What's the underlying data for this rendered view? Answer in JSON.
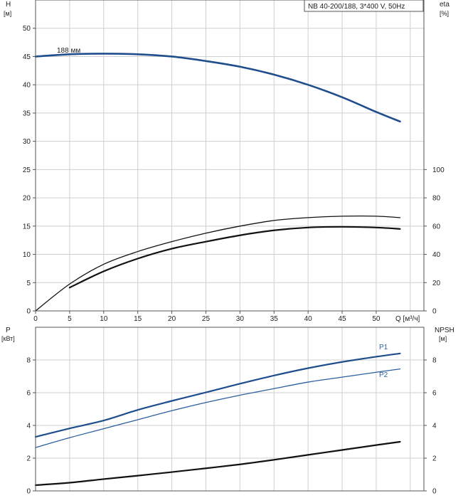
{
  "chart_data": [
    {
      "type": "line",
      "title": "NB 40-200/188, 3*400 V, 50Hz",
      "xlabel": "Q [м³/ч]",
      "ylabel": "H",
      "ylabel_unit": "[м]",
      "ylabel_right": "eta",
      "ylabel_right_unit": "[%]",
      "xlim": [
        0,
        57
      ],
      "ylim": [
        0,
        55
      ],
      "ylim_right": [
        0,
        220
      ],
      "x_ticks": [
        0,
        5,
        10,
        15,
        20,
        25,
        30,
        35,
        40,
        45,
        50
      ],
      "y_ticks": [
        0,
        5,
        10,
        15,
        20,
        25,
        30,
        35,
        40,
        45,
        50
      ],
      "y_ticks_right": [
        0,
        20,
        40,
        60,
        80,
        100
      ],
      "grid": true,
      "series": [
        {
          "name": "188 мм",
          "axis": "left",
          "color": "#1f4e8c",
          "x": [
            0,
            5,
            10,
            15,
            20,
            25,
            30,
            35,
            40,
            45,
            50,
            53.5
          ],
          "y": [
            45,
            45.4,
            45.5,
            45.4,
            45.0,
            44.2,
            43.2,
            41.8,
            40.0,
            37.8,
            35.2,
            33.5
          ]
        },
        {
          "name": "",
          "axis": "right",
          "color": "#111111",
          "x": [
            0,
            5,
            10,
            15,
            20,
            25,
            30,
            35,
            40,
            45,
            50,
            53.5
          ],
          "y": [
            0,
            19,
            33,
            42,
            49,
            55,
            60,
            64,
            66,
            67,
            67,
            66
          ]
        },
        {
          "name": "",
          "axis": "right",
          "color": "#111111",
          "x": [
            5,
            10,
            15,
            20,
            25,
            30,
            35,
            40,
            45,
            50,
            53.5
          ],
          "y": [
            16.5,
            28,
            37,
            44,
            49,
            53.5,
            57,
            59,
            59.5,
            59,
            58
          ]
        }
      ]
    },
    {
      "type": "line",
      "title": "",
      "xlabel": "",
      "ylabel": "P",
      "ylabel_unit": "[кВт]",
      "ylabel_right": "NPSH",
      "ylabel_right_unit": "[м]",
      "xlim": [
        0,
        57
      ],
      "ylim": [
        0,
        10
      ],
      "ylim_right": [
        0,
        10
      ],
      "y_ticks": [
        0,
        2,
        4,
        6,
        8
      ],
      "y_ticks_right": [
        0,
        2,
        4,
        6,
        8
      ],
      "grid": true,
      "series": [
        {
          "name": "P1",
          "axis": "left",
          "color": "#1f4e8c",
          "x": [
            0,
            5,
            10,
            15,
            20,
            25,
            30,
            35,
            40,
            45,
            50,
            53.5
          ],
          "y": [
            3.3,
            3.82,
            4.3,
            4.95,
            5.5,
            6.02,
            6.55,
            7.05,
            7.5,
            7.88,
            8.2,
            8.4
          ]
        },
        {
          "name": "P2",
          "axis": "left",
          "color": "#2b5f9e",
          "x": [
            0,
            5,
            10,
            15,
            20,
            25,
            30,
            35,
            40,
            45,
            50,
            53.5
          ],
          "y": [
            2.65,
            3.25,
            3.8,
            4.35,
            4.9,
            5.4,
            5.85,
            6.25,
            6.65,
            6.95,
            7.25,
            7.45
          ]
        },
        {
          "name": "",
          "axis": "right",
          "color": "#111111",
          "x": [
            0,
            5,
            10,
            15,
            20,
            25,
            30,
            35,
            40,
            45,
            50,
            53.5
          ],
          "y": [
            0.35,
            0.5,
            0.72,
            0.93,
            1.15,
            1.38,
            1.62,
            1.9,
            2.2,
            2.5,
            2.8,
            3.0
          ]
        }
      ]
    }
  ]
}
